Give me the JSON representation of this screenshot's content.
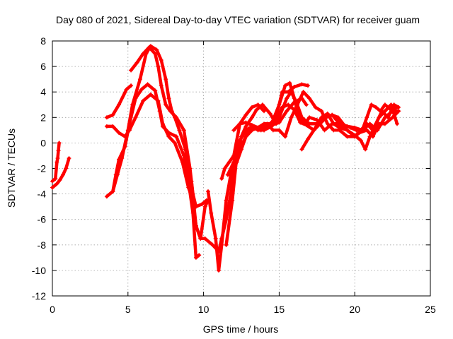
{
  "chart_data": {
    "type": "scatter",
    "title": "Day 080 of 2021, Sidereal Day-to-day VTEC variation (SDTVAR) for receiver guam",
    "xlabel": "GPS time / hours",
    "ylabel": "SDTVAR / TECUs",
    "xlim": [
      0,
      25
    ],
    "ylim": [
      -12,
      8
    ],
    "xticks": [
      "0",
      "5",
      "10",
      "15",
      "20",
      "25"
    ],
    "yticks": [
      "-12",
      "-10",
      "-8",
      "-6",
      "-4",
      "-2",
      "0",
      "2",
      "4",
      "6",
      "8"
    ],
    "grid": true,
    "marker": "+",
    "color": "#ff0000",
    "series": [
      {
        "points": [
          [
            0.0,
            -3.0
          ],
          [
            0.2,
            -2.8
          ],
          [
            0.3,
            -1.5
          ],
          [
            0.35,
            -1.2
          ],
          [
            0.4,
            -0.6
          ],
          [
            0.45,
            0.0
          ]
        ]
      },
      {
        "points": [
          [
            0.0,
            -3.5
          ],
          [
            0.3,
            -3.2
          ],
          [
            0.5,
            -2.9
          ],
          [
            0.7,
            -2.5
          ],
          [
            0.9,
            -2.0
          ],
          [
            1.1,
            -1.2
          ]
        ]
      },
      {
        "points": [
          [
            3.6,
            -4.2
          ],
          [
            4.0,
            -3.8
          ],
          [
            4.2,
            -2.5
          ],
          [
            4.4,
            -1.3
          ],
          [
            4.8,
            -0.3
          ],
          [
            5.1,
            1.5
          ],
          [
            5.5,
            3.5
          ],
          [
            5.9,
            4.2
          ],
          [
            6.3,
            4.6
          ],
          [
            6.8,
            4.1
          ],
          [
            7.1,
            2.5
          ],
          [
            7.3,
            1.3
          ],
          [
            7.7,
            0.8
          ],
          [
            8.2,
            0.5
          ],
          [
            8.7,
            -1.0
          ],
          [
            9.0,
            -3.0
          ],
          [
            9.3,
            -5.5
          ],
          [
            9.5,
            -9.0
          ],
          [
            9.7,
            -8.8
          ]
        ]
      },
      {
        "points": [
          [
            4.0,
            -3.8
          ],
          [
            4.3,
            -2.5
          ],
          [
            4.6,
            -1.2
          ],
          [
            5.0,
            1.0
          ],
          [
            5.3,
            3.0
          ],
          [
            5.8,
            5.0
          ],
          [
            6.2,
            7.0
          ],
          [
            6.5,
            7.6
          ],
          [
            6.9,
            7.3
          ],
          [
            7.2,
            6.5
          ],
          [
            7.5,
            5.0
          ],
          [
            7.7,
            3.5
          ],
          [
            7.9,
            2.5
          ],
          [
            8.1,
            2.0
          ],
          [
            8.4,
            1.0
          ],
          [
            8.8,
            -0.5
          ],
          [
            9.2,
            -3.0
          ],
          [
            9.5,
            -6.5
          ],
          [
            9.8,
            -7.5
          ],
          [
            10.1,
            -5.0
          ],
          [
            10.3,
            -4.5
          ]
        ]
      },
      {
        "points": [
          [
            3.6,
            2.0
          ],
          [
            4.0,
            2.2
          ],
          [
            4.4,
            3.0
          ],
          [
            4.9,
            4.2
          ],
          [
            5.2,
            4.5
          ]
        ]
      },
      {
        "points": [
          [
            3.6,
            1.3
          ],
          [
            4.0,
            1.3
          ],
          [
            4.4,
            0.8
          ],
          [
            4.8,
            0.5
          ],
          [
            5.1,
            1.0
          ],
          [
            5.5,
            2.0
          ],
          [
            6.0,
            3.3
          ],
          [
            6.5,
            3.8
          ],
          [
            7.0,
            3.3
          ],
          [
            7.3,
            1.5
          ],
          [
            7.7,
            0.5
          ],
          [
            8.1,
            0.0
          ],
          [
            8.6,
            -1.5
          ],
          [
            9.0,
            -3.5
          ],
          [
            9.3,
            -4.5
          ],
          [
            9.5,
            -6.5
          ],
          [
            9.8,
            -7.5
          ],
          [
            10.1,
            -7.5
          ],
          [
            10.6,
            -8.0
          ],
          [
            11.0,
            -8.5
          ],
          [
            11.2,
            -7.5
          ],
          [
            11.5,
            -6.0
          ],
          [
            11.8,
            -4.0
          ],
          [
            12.0,
            -2.0
          ],
          [
            12.3,
            -1.0
          ],
          [
            12.6,
            0.0
          ],
          [
            13.0,
            1.0
          ],
          [
            13.5,
            1.2
          ],
          [
            14.0,
            1.0
          ],
          [
            14.5,
            1.3
          ],
          [
            15.0,
            2.0
          ],
          [
            15.5,
            3.5
          ],
          [
            15.8,
            4.0
          ],
          [
            16.2,
            3.0
          ],
          [
            16.5,
            2.0
          ],
          [
            17.0,
            1.5
          ],
          [
            17.5,
            1.5
          ],
          [
            18.0,
            2.0
          ],
          [
            18.5,
            2.2
          ],
          [
            19.0,
            1.5
          ],
          [
            19.5,
            1.3
          ],
          [
            20.0,
            1.2
          ],
          [
            20.5,
            1.0
          ],
          [
            21.0,
            1.5
          ],
          [
            21.5,
            1.0
          ],
          [
            22.0,
            2.0
          ],
          [
            22.5,
            2.5
          ],
          [
            22.9,
            2.5
          ]
        ]
      },
      {
        "points": [
          [
            5.2,
            5.7
          ],
          [
            5.6,
            6.3
          ],
          [
            6.0,
            7.0
          ],
          [
            6.4,
            7.5
          ],
          [
            6.8,
            7.0
          ],
          [
            7.0,
            6.0
          ],
          [
            7.2,
            4.5
          ],
          [
            7.5,
            3.0
          ],
          [
            7.8,
            2.5
          ],
          [
            8.2,
            2.0
          ],
          [
            8.7,
            1.0
          ],
          [
            9.1,
            -2.0
          ],
          [
            9.3,
            -4.0
          ],
          [
            9.5,
            -5.0
          ],
          [
            9.9,
            -4.8
          ],
          [
            10.2,
            -4.5
          ]
        ]
      },
      {
        "points": [
          [
            10.3,
            -3.8
          ],
          [
            10.5,
            -5.5
          ],
          [
            10.8,
            -7.5
          ],
          [
            11.0,
            -10.0
          ],
          [
            11.2,
            -8.0
          ],
          [
            11.5,
            -4.5
          ],
          [
            11.8,
            -2.5
          ],
          [
            12.2,
            -1.5
          ],
          [
            12.5,
            -0.5
          ],
          [
            12.8,
            0.5
          ],
          [
            13.2,
            1.0
          ],
          [
            13.6,
            1.2
          ],
          [
            14.0,
            1.5
          ],
          [
            14.5,
            1.5
          ],
          [
            15.0,
            3.0
          ],
          [
            15.4,
            4.5
          ],
          [
            15.7,
            4.7
          ],
          [
            16.0,
            3.5
          ],
          [
            16.3,
            2.0
          ],
          [
            16.7,
            1.5
          ],
          [
            17.0,
            2.0
          ],
          [
            17.5,
            1.8
          ],
          [
            18.0,
            1.0
          ],
          [
            18.5,
            1.5
          ],
          [
            19.0,
            1.5
          ],
          [
            19.5,
            1.0
          ],
          [
            20.0,
            0.5
          ],
          [
            20.3,
            0.8
          ],
          [
            20.8,
            1.0
          ],
          [
            21.2,
            0.5
          ],
          [
            21.6,
            1.5
          ],
          [
            22.0,
            1.5
          ],
          [
            22.5,
            2.0
          ],
          [
            22.9,
            2.5
          ]
        ]
      },
      {
        "points": [
          [
            11.8,
            -2.2
          ],
          [
            12.2,
            -1.2
          ],
          [
            12.6,
            0.0
          ],
          [
            13.0,
            1.0
          ],
          [
            13.4,
            1.2
          ],
          [
            13.8,
            1.0
          ],
          [
            14.2,
            1.5
          ],
          [
            14.6,
            1.0
          ],
          [
            15.0,
            1.0
          ],
          [
            15.4,
            0.5
          ],
          [
            15.8,
            2.0
          ],
          [
            16.2,
            3.0
          ],
          [
            16.6,
            4.0
          ],
          [
            17.0,
            3.5
          ],
          [
            17.4,
            2.8
          ],
          [
            17.8,
            2.5
          ],
          [
            18.2,
            1.5
          ],
          [
            18.6,
            1.0
          ],
          [
            19.0,
            1.0
          ],
          [
            19.5,
            0.5
          ],
          [
            20.0,
            0.5
          ],
          [
            20.4,
            1.0
          ],
          [
            20.8,
            1.5
          ],
          [
            21.2,
            1.0
          ],
          [
            21.6,
            2.0
          ],
          [
            22.0,
            2.5
          ],
          [
            22.4,
            3.0
          ],
          [
            22.8,
            1.5
          ]
        ]
      },
      {
        "points": [
          [
            11.5,
            -8.0
          ],
          [
            11.9,
            -4.5
          ],
          [
            12.2,
            -1.0
          ],
          [
            12.5,
            0.5
          ],
          [
            12.8,
            1.3
          ],
          [
            13.2,
            2.0
          ],
          [
            13.5,
            2.6
          ],
          [
            13.9,
            3.0
          ],
          [
            14.4,
            2.3
          ],
          [
            14.8,
            1.5
          ],
          [
            15.2,
            2.8
          ],
          [
            15.6,
            3.0
          ],
          [
            16.0,
            2.6
          ],
          [
            16.4,
            1.6
          ],
          [
            16.8,
            1.4
          ],
          [
            17.3,
            1.0
          ],
          [
            17.8,
            2.0
          ],
          [
            18.2,
            2.3
          ],
          [
            18.6,
            1.5
          ],
          [
            19.0,
            1.2
          ],
          [
            19.5,
            1.0
          ],
          [
            20.0,
            0.6
          ],
          [
            20.4,
            0.2
          ],
          [
            20.7,
            -0.5
          ],
          [
            21.0,
            0.5
          ],
          [
            21.4,
            1.5
          ],
          [
            21.8,
            2.5
          ],
          [
            22.2,
            2.0
          ],
          [
            22.6,
            3.0
          ],
          [
            22.9,
            2.8
          ]
        ]
      },
      {
        "points": [
          [
            11.6,
            -2.5
          ],
          [
            12.0,
            -1.5
          ],
          [
            12.4,
            0.2
          ],
          [
            12.8,
            1.0
          ],
          [
            13.2,
            1.3
          ],
          [
            13.6,
            1.0
          ],
          [
            14.0,
            1.0
          ],
          [
            14.4,
            1.5
          ],
          [
            14.8,
            2.0
          ],
          [
            15.2,
            4.0
          ],
          [
            15.6,
            4.0
          ],
          [
            16.0,
            4.4
          ],
          [
            16.5,
            4.6
          ],
          [
            16.9,
            4.5
          ]
        ]
      },
      {
        "points": [
          [
            16.5,
            -0.5
          ],
          [
            16.9,
            0.3
          ],
          [
            17.3,
            1.0
          ],
          [
            17.7,
            1.5
          ],
          [
            18.1,
            2.0
          ],
          [
            18.5,
            2.2
          ],
          [
            18.9,
            2.0
          ],
          [
            19.3,
            1.4
          ],
          [
            19.7,
            1.2
          ],
          [
            20.1,
            1.0
          ],
          [
            20.5,
            1.0
          ],
          [
            20.8,
            2.0
          ],
          [
            21.1,
            3.0
          ],
          [
            21.4,
            2.8
          ],
          [
            21.7,
            2.5
          ],
          [
            22.0,
            3.0
          ],
          [
            22.4,
            2.6
          ],
          [
            22.8,
            2.8
          ]
        ]
      },
      {
        "points": [
          [
            11.2,
            -2.8
          ],
          [
            11.4,
            -2.0
          ],
          [
            11.7,
            -1.5
          ],
          [
            12.0,
            -1.0
          ],
          [
            12.4,
            1.5
          ],
          [
            12.8,
            1.6
          ],
          [
            13.2,
            1.4
          ],
          [
            13.6,
            1.2
          ],
          [
            14.0,
            1.3
          ],
          [
            14.5,
            1.4
          ],
          [
            15.0,
            1.6
          ],
          [
            15.5,
            2.5
          ],
          [
            16.0,
            3.2
          ],
          [
            16.5,
            3.5
          ],
          [
            16.8,
            3.0
          ]
        ]
      },
      {
        "points": [
          [
            12.0,
            1.0
          ],
          [
            12.4,
            1.5
          ],
          [
            12.8,
            2.2
          ],
          [
            13.2,
            2.8
          ],
          [
            13.6,
            3.0
          ],
          [
            14.0,
            2.5
          ]
        ]
      }
    ]
  }
}
